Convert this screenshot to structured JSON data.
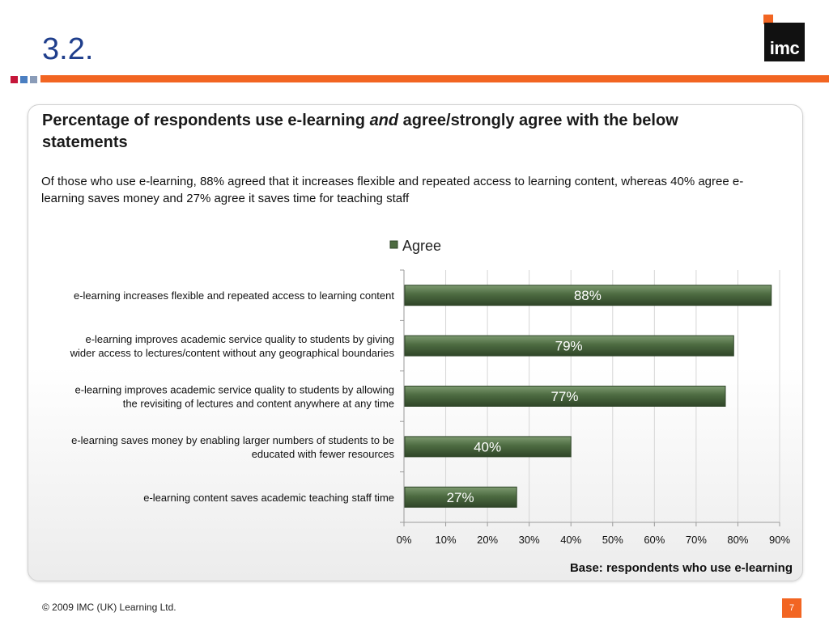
{
  "slide": {
    "title": "3.2.",
    "logo_text": "imc"
  },
  "colors": {
    "title": "#1f3e8c",
    "accent_orange": "#f26522",
    "accent_squares": [
      "#c5163a",
      "#4b7fc1",
      "#8a9cb8",
      "#6aa84f"
    ],
    "bar_fill": "#4d6b41",
    "bar_edge": "#2f4528"
  },
  "headline": {
    "before": "Percentage of respondents use e-learning ",
    "emph": "and",
    "after": " agree/strongly agree with the below statements"
  },
  "summary": "Of those who use e-learning, 88% agreed that it increases flexible and repeated access to learning content, whereas 40% agree e-learning saves money and  27% agree it saves time for teaching staff",
  "chart_data": {
    "type": "bar",
    "orientation": "horizontal",
    "categories": [
      [
        "e-learning increases flexible and repeated access to learning content"
      ],
      [
        "e-learning improves academic service quality to students by giving",
        "wider access to lectures/content without any geographical boundaries"
      ],
      [
        "e-learning improves academic service quality to students by allowing",
        "the revisiting of lectures and content anywhere at any time"
      ],
      [
        "e-learning saves money by enabling larger numbers of students to be",
        "educated with fewer resources"
      ],
      [
        "e-learning content saves academic teaching staff time"
      ]
    ],
    "series": [
      {
        "name": "Agree",
        "values": [
          88,
          79,
          77,
          40,
          27
        ]
      }
    ],
    "data_labels": [
      "88%",
      "79%",
      "77%",
      "40%",
      "27%"
    ],
    "xlim": [
      0,
      90
    ],
    "xticks": [
      0,
      10,
      20,
      30,
      40,
      50,
      60,
      70,
      80,
      90
    ],
    "xtick_labels": [
      "0%",
      "10%",
      "20%",
      "30%",
      "40%",
      "50%",
      "60%",
      "70%",
      "80%",
      "90%"
    ],
    "grid": true,
    "legend_position": "top"
  },
  "base_note": "Base: respondents who use e-learning",
  "footer": {
    "copyright": "© 2009 IMC (UK) Learning Ltd.",
    "page": "7"
  }
}
